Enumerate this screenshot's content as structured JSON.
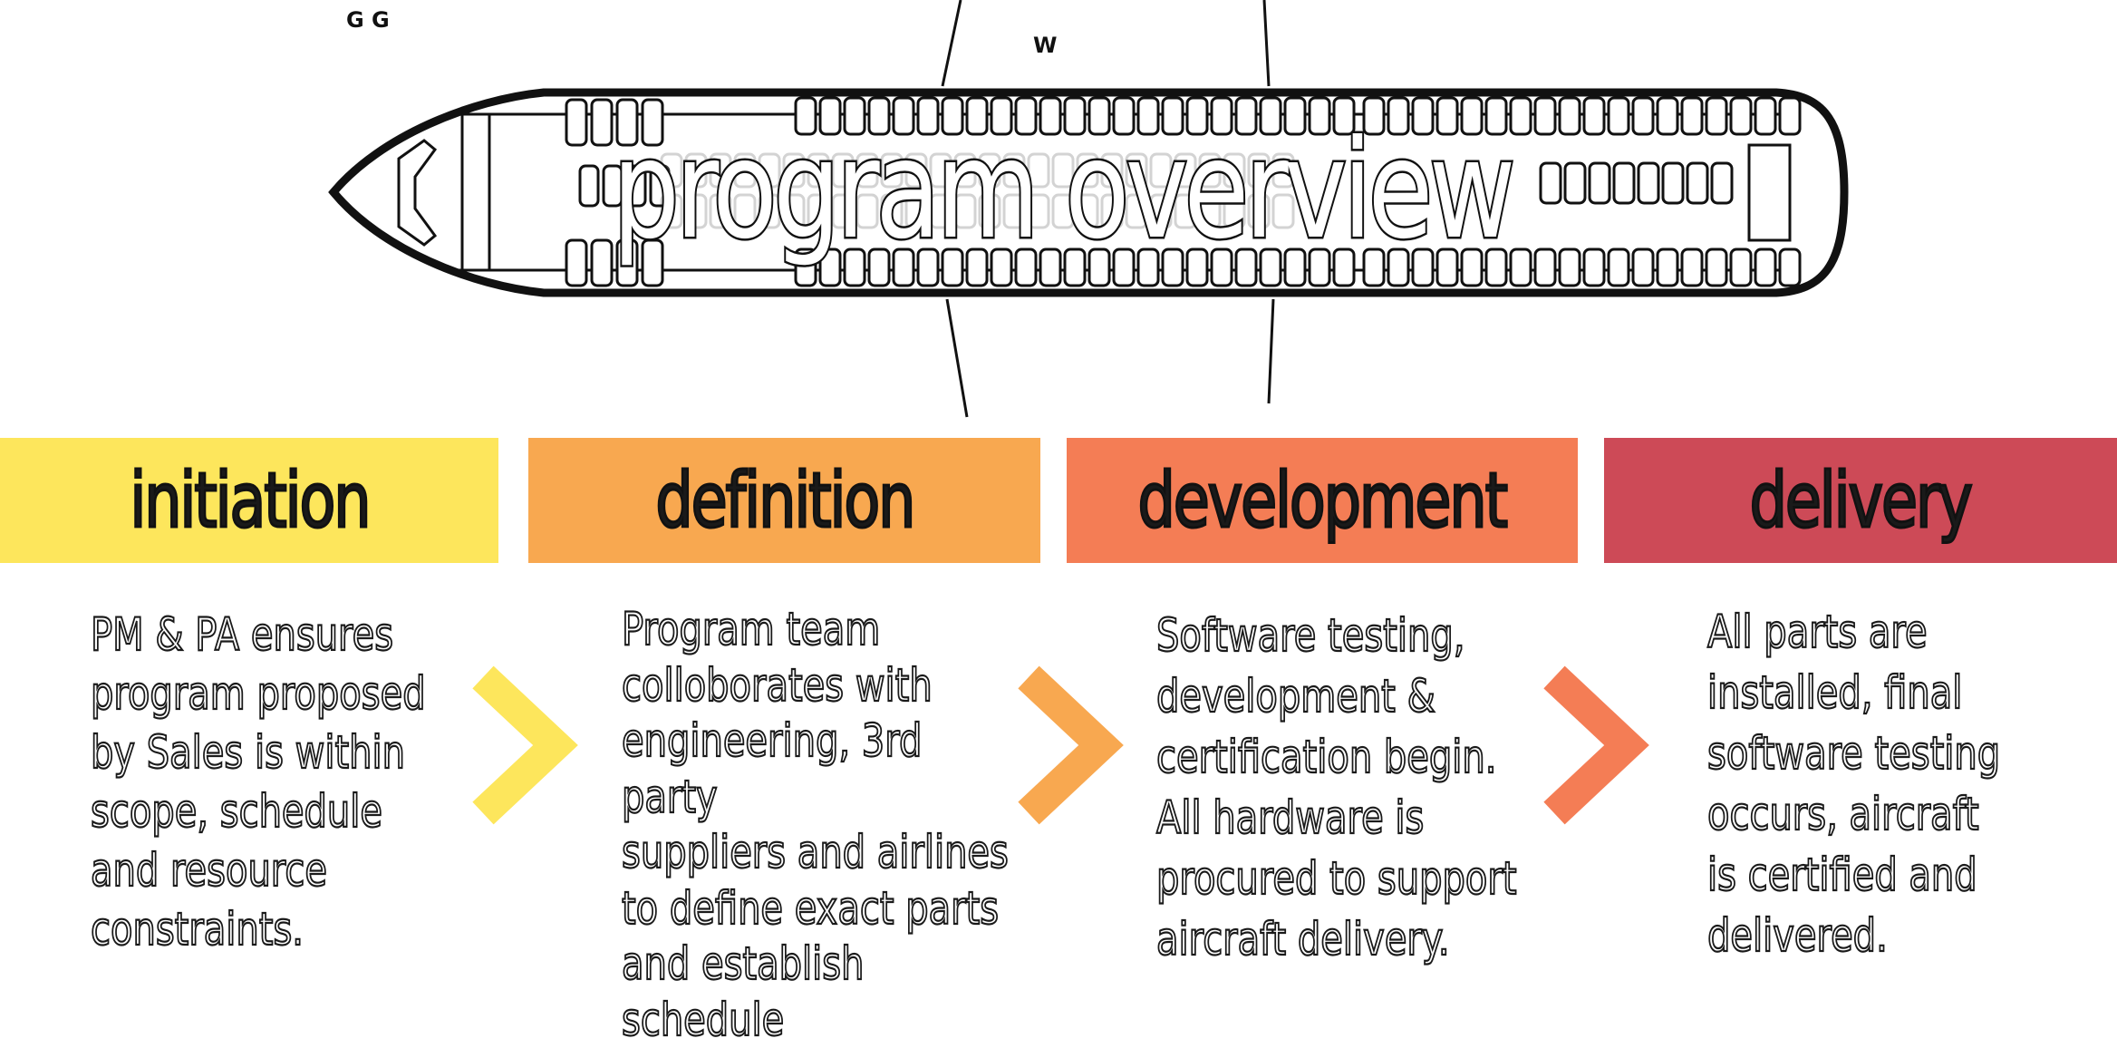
{
  "title": "program overview",
  "plane_labels": {
    "row_a": "G  G",
    "row_b": "W"
  },
  "phases": [
    {
      "name": "initiation",
      "color": "#fde65c",
      "description": "PM & PA ensures\nprogram proposed\nby Sales is within\nscope, schedule\nand resource\nconstraints."
    },
    {
      "name": "definition",
      "color": "#f8a850",
      "description": "Program team\ncolloborates with\nengineering, 3rd party\nsuppliers and airlines\nto define exact parts\nand establish\nschedule"
    },
    {
      "name": "development",
      "color": "#f47d55",
      "description": "Software testing,\ndevelopment &\ncertification begin.\nAll hardware is\nprocured to support\naircraft delivery."
    },
    {
      "name": "delivery",
      "color": "#cd4a57",
      "description": "All parts are\ninstalled, final\nsoftware testing\noccurs, aircraft\nis certified and\ndelivered."
    }
  ],
  "arrows": [
    {
      "icon": "chevron-right-icon",
      "color": "#fde65c"
    },
    {
      "icon": "chevron-right-icon",
      "color": "#f8a850"
    },
    {
      "icon": "chevron-right-icon",
      "color": "#f47d55"
    }
  ]
}
